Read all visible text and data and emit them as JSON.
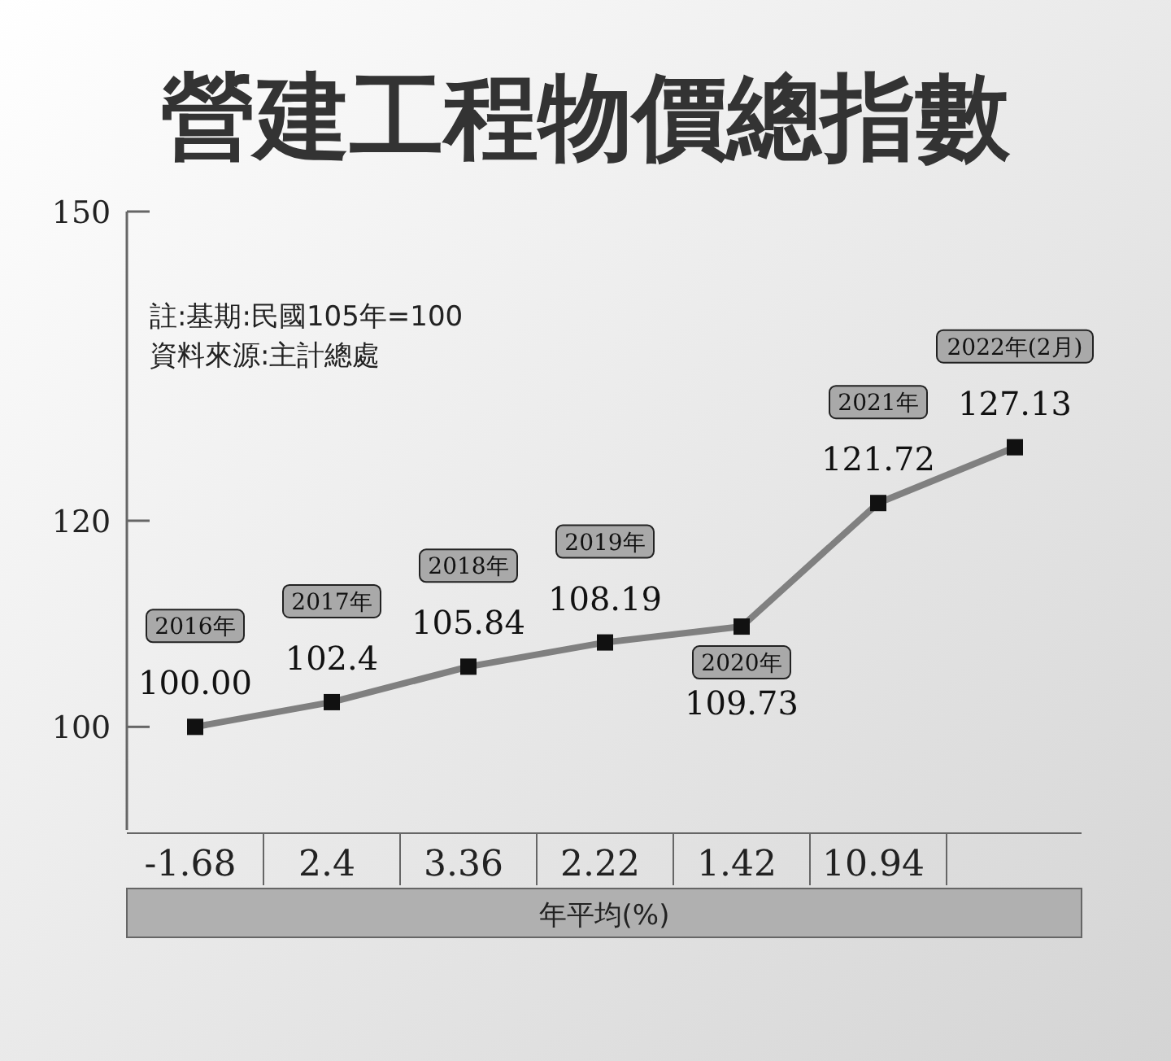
{
  "chart_data": {
    "type": "line",
    "title": "營建工程物價總指數",
    "categories": [
      "2016年",
      "2017年",
      "2018年",
      "2019年",
      "2020年",
      "2021年",
      "2022年(2月)"
    ],
    "values": [
      100,
      102.4,
      105.84,
      108.19,
      109.73,
      121.72,
      127.13
    ],
    "value_labels": [
      "100.00",
      "102.4",
      "105.84",
      "108.19",
      "109.73",
      "121.72",
      "127.13"
    ],
    "color": "#808080",
    "marker": "square",
    "ylim": [
      90,
      150
    ],
    "yticks": [
      100,
      120,
      150
    ],
    "grid": false,
    "xlabel": "年平均(%)",
    "annotations": [
      "註:基期:民國105年=100",
      "資料來源:主計總處",
      "-1.68",
      "2.4",
      "3.36",
      "2.22",
      "1.42",
      "10.94"
    ]
  }
}
